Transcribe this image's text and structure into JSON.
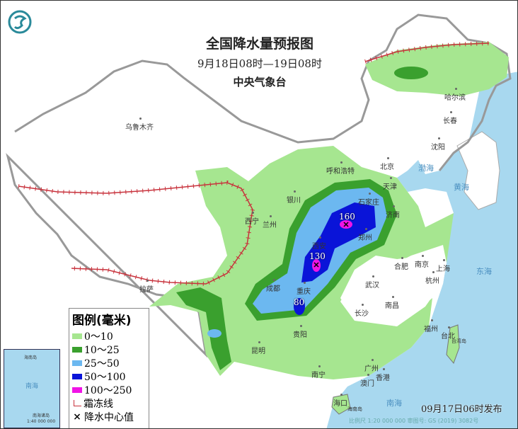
{
  "header": {
    "title": "全国降水量预报图",
    "period": "9月18日08时—19日08时",
    "agency": "中央气象台",
    "logo_icon": "cma-dragon-logo"
  },
  "legend": {
    "title": "图例(毫米)",
    "items": [
      {
        "label": "0～10",
        "color": "#a6e690"
      },
      {
        "label": "10～25",
        "color": "#3aa02e"
      },
      {
        "label": "25～50",
        "color": "#6cb8f0"
      },
      {
        "label": "50～100",
        "color": "#0a14d8"
      },
      {
        "label": "100～250",
        "color": "#f014e6"
      }
    ],
    "frost_label": "霜冻线",
    "frost_color": "#c8323c",
    "center_label": "降水中心值"
  },
  "centers": [
    {
      "value": "160"
    },
    {
      "value": "130"
    },
    {
      "value": "80"
    }
  ],
  "cities": [
    "乌鲁木齐",
    "哈尔滨",
    "长春",
    "沈阳",
    "北京",
    "天津",
    "石家庄",
    "济南",
    "郑州",
    "呼和浩特",
    "银川",
    "兰州",
    "西宁",
    "西安",
    "成都",
    "重庆",
    "贵阳",
    "昆明",
    "南宁",
    "广州",
    "香港",
    "澳门",
    "海口",
    "武汉",
    "长沙",
    "南昌",
    "合肥",
    "南京",
    "上海",
    "杭州",
    "福州",
    "台北",
    "拉萨"
  ],
  "seas": {
    "bohai": "渤海",
    "huanghai": "黄海",
    "donghai": "东海",
    "nanhai": "南海",
    "hainan": "海南岛",
    "taiwan": "台湾岛"
  },
  "inset": {
    "sea": "南海",
    "islands": "南海诸岛",
    "scale": "1:40 000 000",
    "hainan": "海南岛"
  },
  "issued": "09月17日06时发布",
  "footer": "比例尺 1:20 000 000    审图号: GS (2019) 3082号",
  "colors": {
    "sea": "#a8d8ef",
    "border": "#999999"
  }
}
